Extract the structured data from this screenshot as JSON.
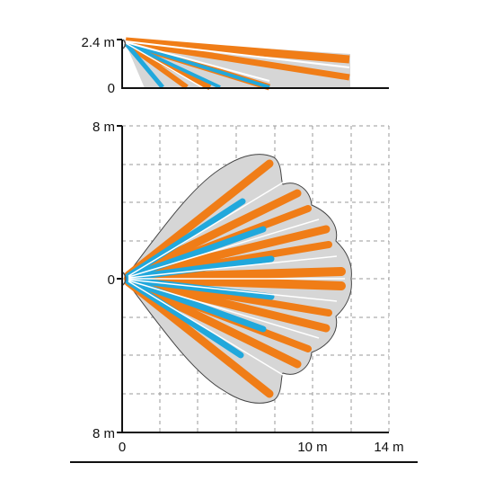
{
  "side_view": {
    "height_label": "2.4 m",
    "zero_label": "0"
  },
  "top_view": {
    "top_label": "8 m",
    "mid_label": "0",
    "bottom_label": "8 m",
    "x_zero_label": "0",
    "x_mid_label": "10 m",
    "x_end_label": "14 m"
  },
  "colors": {
    "coverage_fill": "#d6d6d6",
    "long_zone": "#f07d17",
    "short_zone": "#21a8dc",
    "grid": "#9a9a9a",
    "axis": "#111111"
  }
}
